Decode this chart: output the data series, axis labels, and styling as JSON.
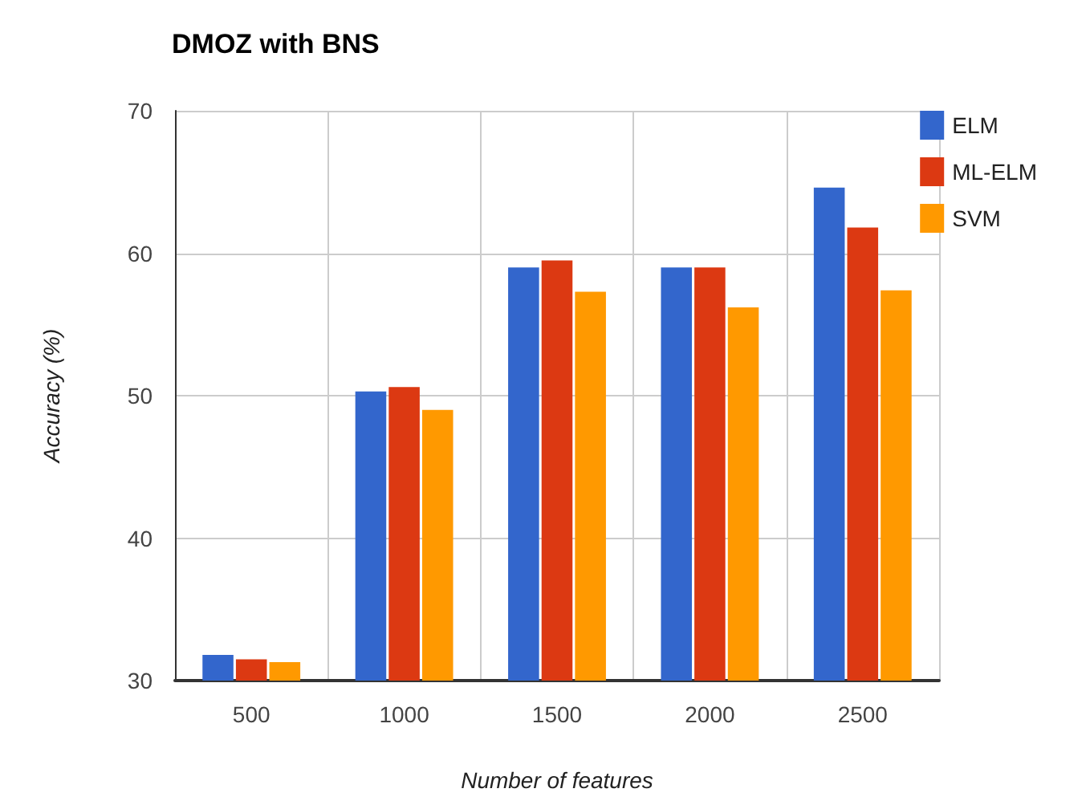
{
  "chart_data": {
    "type": "bar",
    "title": "DMOZ with BNS",
    "xlabel": "Number of features",
    "ylabel": "Accuracy (%)",
    "categories": [
      "500",
      "1000",
      "1500",
      "2000",
      "2500"
    ],
    "series": [
      {
        "name": "ELM",
        "color": "#3366cc",
        "values": [
          31.8,
          50.3,
          59.0,
          59.0,
          64.6
        ]
      },
      {
        "name": "ML-ELM",
        "color": "#dc3912",
        "values": [
          31.5,
          50.6,
          59.5,
          59.0,
          61.8
        ]
      },
      {
        "name": "SVM",
        "color": "#ff9900",
        "values": [
          31.3,
          49.0,
          57.3,
          56.2,
          57.4
        ]
      }
    ],
    "ylim": [
      30,
      70
    ],
    "yticks": [
      30,
      40,
      50,
      60,
      70
    ],
    "grid": true,
    "legend": "top right"
  }
}
